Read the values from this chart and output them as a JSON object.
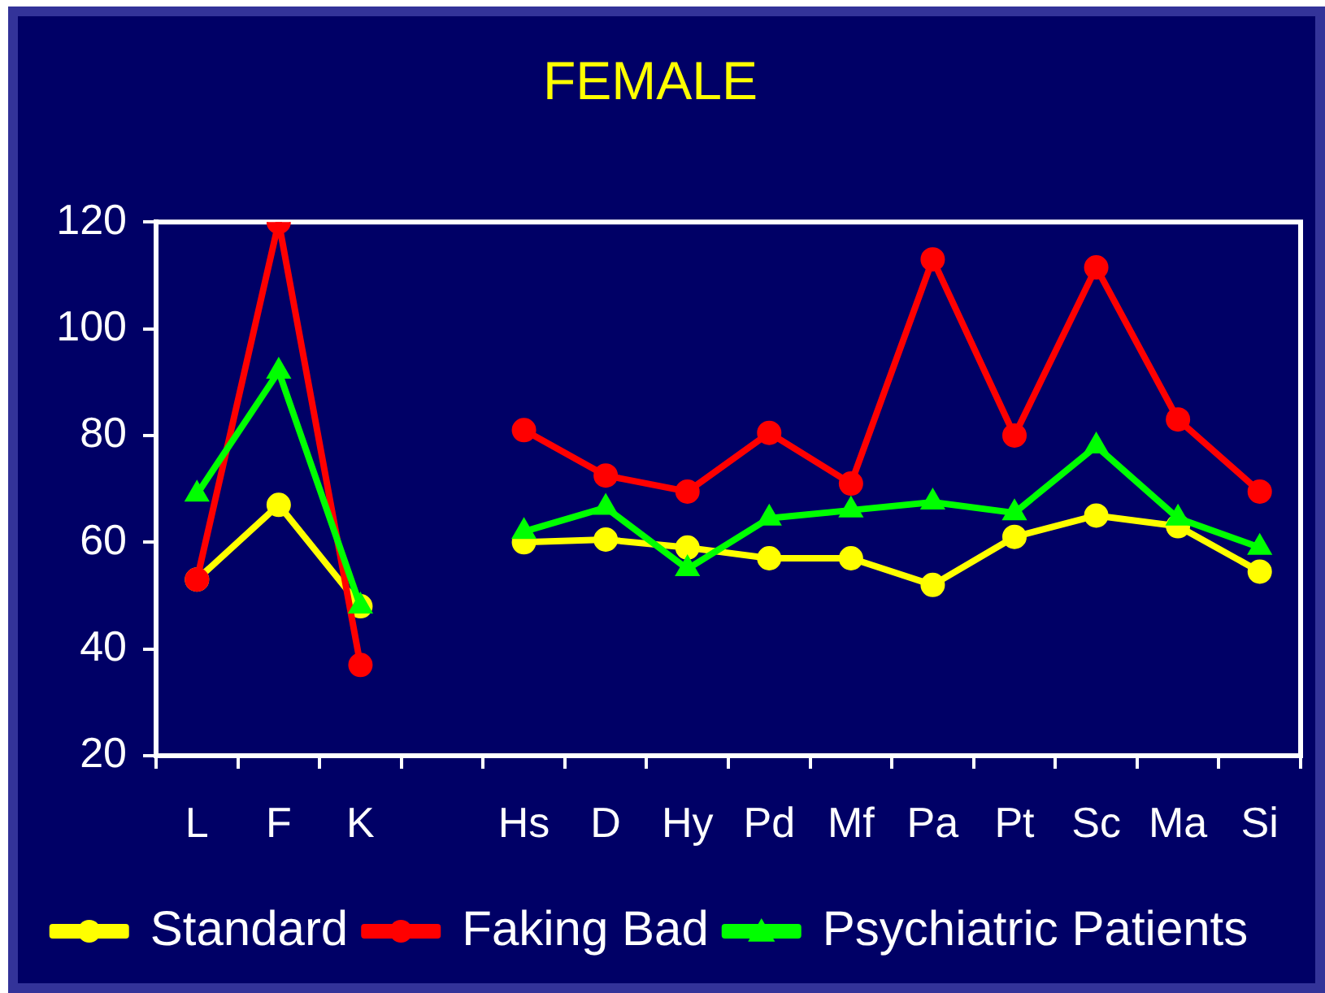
{
  "chart_data": {
    "type": "line",
    "title": "FEMALE",
    "categories": [
      "L",
      "F",
      "K",
      null,
      "Hs",
      "D",
      "Hy",
      "Pd",
      "Mf",
      "Pa",
      "Pt",
      "Sc",
      "Ma",
      "Si"
    ],
    "series": [
      {
        "name": "Standard",
        "color": "#ffff00",
        "marker": "circle",
        "values": [
          53,
          67,
          48,
          null,
          60,
          60.5,
          59,
          57,
          57,
          52,
          61,
          65,
          63,
          54.5
        ]
      },
      {
        "name": "Faking Bad",
        "color": "#ff0000",
        "marker": "circle",
        "values": [
          53,
          120,
          37,
          null,
          81,
          72.5,
          69.5,
          80.5,
          71,
          113,
          80,
          111.5,
          83,
          69.5
        ]
      },
      {
        "name": "Psychiatric Patients",
        "color": "#00ff00",
        "marker": "triangle",
        "values": [
          69,
          92,
          48,
          null,
          62,
          66.5,
          55,
          64.5,
          66,
          67.5,
          65.5,
          78,
          64.5,
          59
        ]
      }
    ],
    "ylim": [
      20,
      120
    ],
    "yticks": [
      20,
      40,
      60,
      80,
      100,
      120
    ],
    "grid": false,
    "legend": "bottom"
  }
}
